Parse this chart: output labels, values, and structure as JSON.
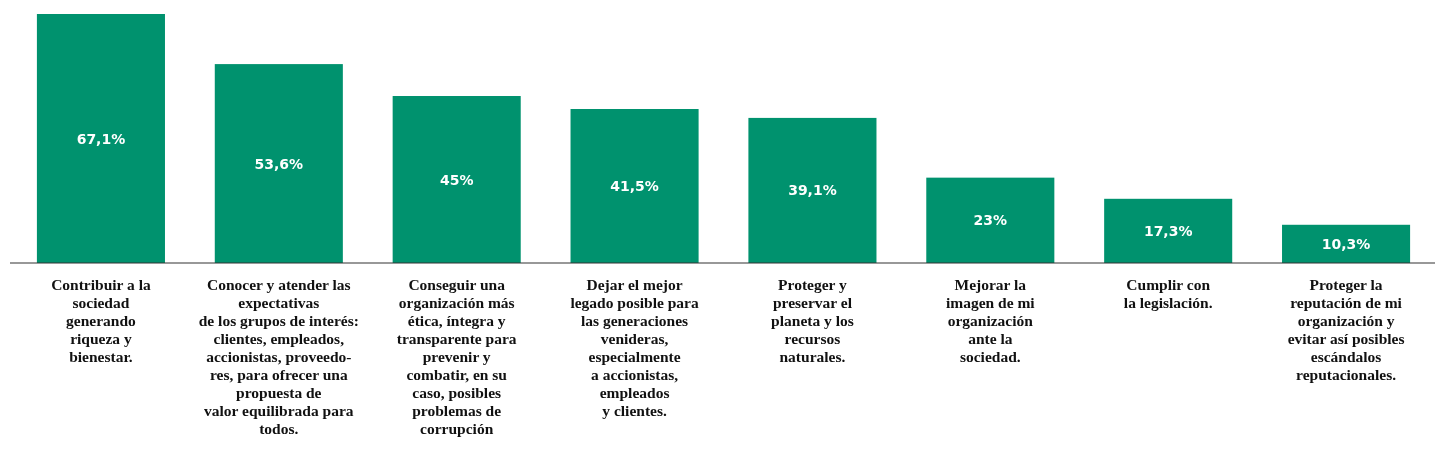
{
  "chart_data": {
    "type": "bar",
    "categories": [
      "Contribuir a la\nsociedad\ngenerando\nriqueza y\nbienestar.",
      "Conocer y atender las\nexpectativas\nde los grupos de interés:\nclientes, empleados,\naccionistas, proveedo-\nres, para ofrecer una\npropuesta de\nvalor equilibrada para\ntodos.",
      "Conseguir una\norganización más\nética, íntegra y\ntransparente para\nprevenir y\ncombatir, en su\ncaso, posibles\nproblemas de\ncorrupción",
      "Dejar el mejor\nlegado posible para\nlas generaciones\nvenideras,\nespecialmente\na accionistas,\nempleados\ny clientes.",
      "Proteger y\npreservar el\nplaneta y los\nrecursos\nnaturales.",
      "Mejorar la\nimagen de mi\norganización\nante la\nsociedad.",
      "Cumplir con\nla legislación.",
      "Proteger la\nreputación de mi\norganización y\nevitar así posibles\nescándalos\nreputacionales."
    ],
    "values": [
      67.1,
      53.6,
      45,
      41.5,
      39.1,
      23,
      17.3,
      10.3
    ],
    "value_labels": [
      "67,1%",
      "53,6%",
      "45%",
      "41,5%",
      "39,1%",
      "23%",
      "17,3%",
      "10,3%"
    ],
    "color": "#00926e",
    "tick_labels": "x"
  }
}
